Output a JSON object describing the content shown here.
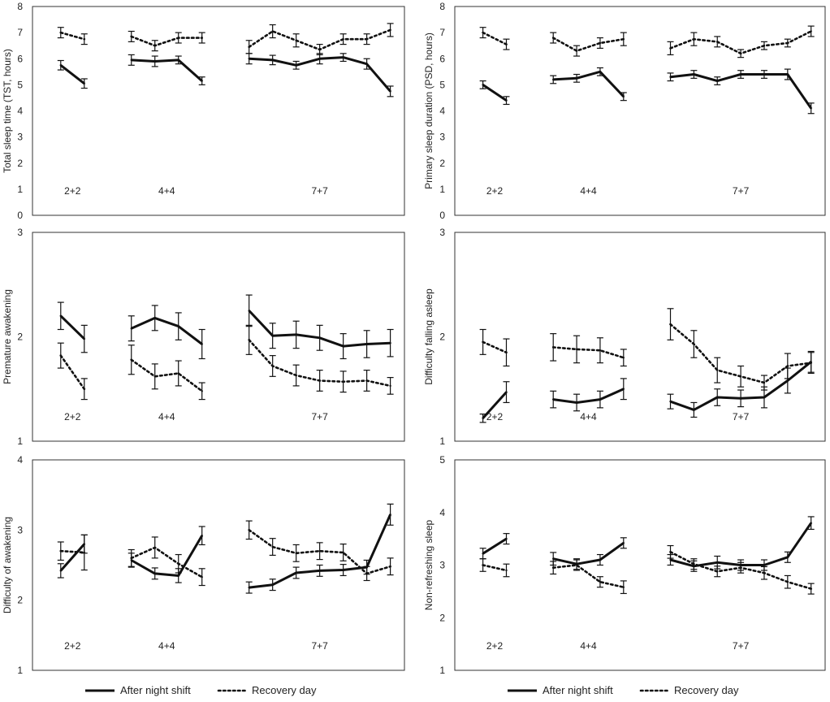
{
  "figure": {
    "legend": {
      "solid_label": "After night shift",
      "dotted_label": "Recovery day"
    },
    "group_labels": [
      "2+2",
      "4+4",
      "7+7"
    ]
  },
  "colors": {
    "line": "#111111",
    "axis": "#333333",
    "background": "#ffffff"
  },
  "chart_data": [
    {
      "id": "tst",
      "type": "line",
      "ylabel": "Total sleep time (TST, hours)",
      "ylim": [
        0,
        8
      ],
      "yticks": [
        0,
        1,
        2,
        3,
        4,
        5,
        6,
        7,
        8
      ],
      "groups": [
        {
          "label": "2+2",
          "x": [
            1,
            2
          ],
          "series": [
            {
              "name": "After night shift",
              "values": [
                5.75,
                5.05
              ],
              "err": [
                0.18,
                0.18
              ]
            },
            {
              "name": "Recovery day",
              "values": [
                7.0,
                6.75
              ],
              "err": [
                0.2,
                0.2
              ]
            }
          ]
        },
        {
          "label": "4+4",
          "x": [
            4,
            5,
            6,
            7
          ],
          "series": [
            {
              "name": "After night shift",
              "values": [
                5.95,
                5.9,
                5.95,
                5.15
              ],
              "err": [
                0.2,
                0.2,
                0.15,
                0.15
              ]
            },
            {
              "name": "Recovery day",
              "values": [
                6.85,
                6.5,
                6.8,
                6.8
              ],
              "err": [
                0.2,
                0.2,
                0.2,
                0.2
              ]
            }
          ]
        },
        {
          "label": "7+7",
          "x": [
            9,
            10,
            11,
            12,
            13,
            14,
            15
          ],
          "series": [
            {
              "name": "After night shift",
              "values": [
                6.0,
                5.95,
                5.75,
                6.0,
                6.05,
                5.8,
                4.75
              ],
              "err": [
                0.2,
                0.18,
                0.15,
                0.2,
                0.15,
                0.2,
                0.2
              ]
            },
            {
              "name": "Recovery day",
              "values": [
                6.45,
                7.05,
                6.7,
                6.35,
                6.75,
                6.75,
                7.1
              ],
              "err": [
                0.25,
                0.25,
                0.25,
                0.2,
                0.2,
                0.2,
                0.25
              ]
            }
          ]
        }
      ]
    },
    {
      "id": "psd",
      "type": "line",
      "ylabel": "Primary sleep duration (PSD, hours)",
      "ylim": [
        0,
        8
      ],
      "yticks": [
        0,
        1,
        2,
        3,
        4,
        5,
        6,
        7,
        8
      ],
      "groups": [
        {
          "label": "2+2",
          "x": [
            1,
            2
          ],
          "series": [
            {
              "name": "After night shift",
              "values": [
                5.0,
                4.4
              ],
              "err": [
                0.15,
                0.15
              ]
            },
            {
              "name": "Recovery day",
              "values": [
                7.0,
                6.55
              ],
              "err": [
                0.2,
                0.2
              ]
            }
          ]
        },
        {
          "label": "4+4",
          "x": [
            4,
            5,
            6,
            7
          ],
          "series": [
            {
              "name": "After night shift",
              "values": [
                5.2,
                5.25,
                5.5,
                4.55
              ],
              "err": [
                0.15,
                0.15,
                0.15,
                0.15
              ]
            },
            {
              "name": "Recovery day",
              "values": [
                6.8,
                6.3,
                6.6,
                6.75
              ],
              "err": [
                0.2,
                0.2,
                0.2,
                0.25
              ]
            }
          ]
        },
        {
          "label": "7+7",
          "x": [
            9,
            10,
            11,
            12,
            13,
            14,
            15
          ],
          "series": [
            {
              "name": "After night shift",
              "values": [
                5.3,
                5.4,
                5.15,
                5.4,
                5.4,
                5.4,
                4.1
              ],
              "err": [
                0.15,
                0.15,
                0.15,
                0.15,
                0.15,
                0.2,
                0.2
              ]
            },
            {
              "name": "Recovery day",
              "values": [
                6.4,
                6.75,
                6.65,
                6.2,
                6.5,
                6.6,
                7.05
              ],
              "err": [
                0.25,
                0.25,
                0.2,
                0.15,
                0.15,
                0.15,
                0.2
              ]
            }
          ]
        }
      ]
    },
    {
      "id": "premature",
      "type": "line",
      "ylabel": "Premature awakening",
      "ylim": [
        1,
        3
      ],
      "yticks": [
        1,
        2,
        3
      ],
      "groups": [
        {
          "label": "2+2",
          "x": [
            1,
            2
          ],
          "series": [
            {
              "name": "After night shift",
              "values": [
                2.2,
                1.98
              ],
              "err": [
                0.13,
                0.13
              ]
            },
            {
              "name": "Recovery day",
              "values": [
                1.82,
                1.5
              ],
              "err": [
                0.12,
                0.1
              ]
            }
          ]
        },
        {
          "label": "4+4",
          "x": [
            4,
            5,
            6,
            7
          ],
          "series": [
            {
              "name": "After night shift",
              "values": [
                2.08,
                2.18,
                2.1,
                1.93
              ],
              "err": [
                0.12,
                0.12,
                0.13,
                0.14
              ]
            },
            {
              "name": "Recovery day",
              "values": [
                1.78,
                1.62,
                1.65,
                1.48
              ],
              "err": [
                0.14,
                0.12,
                0.12,
                0.08
              ]
            }
          ]
        },
        {
          "label": "7+7",
          "x": [
            9,
            10,
            11,
            12,
            13,
            14,
            15
          ],
          "series": [
            {
              "name": "After night shift",
              "values": [
                2.25,
                2.01,
                2.02,
                1.99,
                1.91,
                1.93,
                1.94
              ],
              "err": [
                0.15,
                0.12,
                0.13,
                0.12,
                0.12,
                0.13,
                0.13
              ]
            },
            {
              "name": "Recovery day",
              "values": [
                1.97,
                1.72,
                1.63,
                1.58,
                1.57,
                1.58,
                1.53
              ],
              "err": [
                0.14,
                0.1,
                0.1,
                0.1,
                0.1,
                0.1,
                0.08
              ]
            }
          ]
        }
      ]
    },
    {
      "id": "falling",
      "type": "line",
      "ylabel": "Difficulty falling asleep",
      "ylim": [
        1,
        3
      ],
      "yticks": [
        1,
        2,
        3
      ],
      "groups": [
        {
          "label": "2+2",
          "x": [
            1,
            2
          ],
          "series": [
            {
              "name": "After night shift",
              "values": [
                1.22,
                1.47
              ],
              "err": [
                0.04,
                0.1
              ]
            },
            {
              "name": "Recovery day",
              "values": [
                1.95,
                1.85
              ],
              "err": [
                0.12,
                0.13
              ]
            }
          ]
        },
        {
          "label": "4+4",
          "x": [
            4,
            5,
            6,
            7
          ],
          "series": [
            {
              "name": "After night shift",
              "values": [
                1.4,
                1.37,
                1.4,
                1.5
              ],
              "err": [
                0.08,
                0.08,
                0.08,
                0.1
              ]
            },
            {
              "name": "Recovery day",
              "values": [
                1.9,
                1.88,
                1.87,
                1.8
              ],
              "err": [
                0.13,
                0.13,
                0.12,
                0.08
              ]
            }
          ]
        },
        {
          "label": "7+7",
          "x": [
            9,
            10,
            11,
            12,
            13,
            14,
            15
          ],
          "series": [
            {
              "name": "After night shift",
              "values": [
                1.38,
                1.3,
                1.42,
                1.41,
                1.42,
                1.58,
                1.76
              ],
              "err": [
                0.07,
                0.07,
                0.08,
                0.08,
                0.1,
                0.12,
                0.1
              ]
            },
            {
              "name": "Recovery day",
              "values": [
                2.12,
                1.93,
                1.68,
                1.62,
                1.56,
                1.72,
                1.75
              ],
              "err": [
                0.15,
                0.13,
                0.12,
                0.1,
                0.07,
                0.12,
                0.1
              ]
            }
          ]
        }
      ]
    },
    {
      "id": "awakening",
      "type": "line",
      "ylabel": "Difficulty of awakening",
      "ylim": [
        1,
        4
      ],
      "yticks": [
        1,
        2,
        3,
        4
      ],
      "groups": [
        {
          "label": "2+2",
          "x": [
            1,
            2
          ],
          "series": [
            {
              "name": "After night shift",
              "values": [
                2.42,
                2.8
              ],
              "err": [
                0.1,
                0.13
              ]
            },
            {
              "name": "Recovery day",
              "values": [
                2.7,
                2.68
              ],
              "err": [
                0.13,
                0.25
              ]
            }
          ]
        },
        {
          "label": "4+4",
          "x": [
            4,
            5,
            6,
            7
          ],
          "series": [
            {
              "name": "After night shift",
              "values": [
                2.57,
                2.38,
                2.35,
                2.92
              ],
              "err": [
                0.1,
                0.08,
                0.1,
                0.13
              ]
            },
            {
              "name": "Recovery day",
              "values": [
                2.6,
                2.75,
                2.52,
                2.33
              ],
              "err": [
                0.12,
                0.15,
                0.13,
                0.12
              ]
            }
          ]
        },
        {
          "label": "7+7",
          "x": [
            9,
            10,
            11,
            12,
            13,
            14,
            15
          ],
          "series": [
            {
              "name": "After night shift",
              "values": [
                2.18,
                2.22,
                2.39,
                2.42,
                2.43,
                2.47,
                3.22
              ],
              "err": [
                0.08,
                0.08,
                0.08,
                0.08,
                0.08,
                0.1,
                0.15
              ]
            },
            {
              "name": "Recovery day",
              "values": [
                3.0,
                2.76,
                2.67,
                2.7,
                2.68,
                2.38,
                2.48
              ],
              "err": [
                0.13,
                0.12,
                0.12,
                0.12,
                0.12,
                0.1,
                0.12
              ]
            }
          ]
        }
      ]
    },
    {
      "id": "nonrefresh",
      "type": "line",
      "ylabel": "Non-refreshing sleep",
      "ylim": [
        1,
        5
      ],
      "yticks": [
        1,
        2,
        3,
        4,
        5
      ],
      "groups": [
        {
          "label": "2+2",
          "x": [
            1,
            2
          ],
          "series": [
            {
              "name": "After night shift",
              "values": [
                3.22,
                3.5
              ],
              "err": [
                0.1,
                0.1
              ]
            },
            {
              "name": "Recovery day",
              "values": [
                3.0,
                2.9
              ],
              "err": [
                0.12,
                0.12
              ]
            }
          ]
        },
        {
          "label": "4+4",
          "x": [
            4,
            5,
            6,
            7
          ],
          "series": [
            {
              "name": "After night shift",
              "values": [
                3.12,
                3.02,
                3.1,
                3.42
              ],
              "err": [
                0.12,
                0.1,
                0.1,
                0.1
              ]
            },
            {
              "name": "Recovery day",
              "values": [
                2.95,
                3.0,
                2.68,
                2.58
              ],
              "err": [
                0.12,
                0.1,
                0.1,
                0.12
              ]
            }
          ]
        },
        {
          "label": "7+7",
          "x": [
            9,
            10,
            11,
            12,
            13,
            14,
            15
          ],
          "series": [
            {
              "name": "After night shift",
              "values": [
                3.1,
                2.98,
                3.05,
                3.0,
                3.0,
                3.15,
                3.8
              ],
              "err": [
                0.1,
                0.1,
                0.12,
                0.1,
                0.1,
                0.1,
                0.12
              ]
            },
            {
              "name": "Recovery day",
              "values": [
                3.25,
                3.02,
                2.88,
                2.95,
                2.85,
                2.68,
                2.55
              ],
              "err": [
                0.12,
                0.1,
                0.1,
                0.1,
                0.12,
                0.12,
                0.1
              ]
            }
          ]
        }
      ]
    }
  ]
}
